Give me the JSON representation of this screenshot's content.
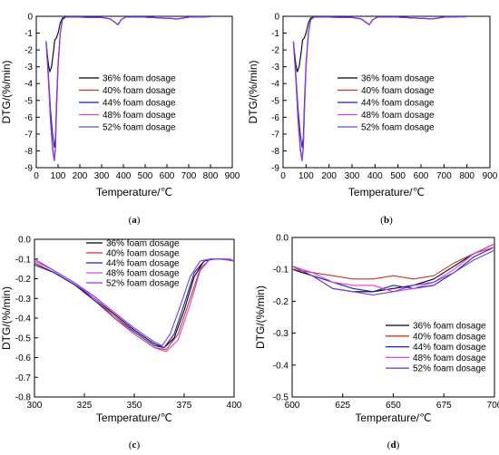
{
  "chart_data": [
    {
      "id": "a",
      "type": "line",
      "panel_label": "a",
      "xlabel": "Temperature/℃",
      "ylabel": "DTG/(%/min)",
      "xlim": [
        0,
        900
      ],
      "ylim": [
        -9,
        0
      ],
      "xticks": [
        0,
        100,
        200,
        300,
        400,
        500,
        600,
        700,
        800,
        900
      ],
      "yticks": [
        -9,
        -8,
        -7,
        -6,
        -5,
        -4,
        -3,
        -2,
        -1,
        0
      ],
      "grid": false,
      "legend_position": "center-right",
      "series": [
        {
          "name": "36% foam dosage",
          "color": "#000000",
          "x": [
            45,
            55,
            62,
            70,
            78,
            85,
            92,
            100,
            110,
            120,
            135,
            150,
            200,
            300,
            340,
            360,
            375,
            390,
            410,
            500,
            600,
            650,
            700,
            800
          ],
          "y": [
            -1.5,
            -2.8,
            -3.3,
            -3.0,
            -2.2,
            -1.4,
            -1.3,
            -1.0,
            -0.4,
            -0.1,
            -0.05,
            -0.05,
            -0.05,
            -0.07,
            -0.15,
            -0.35,
            -0.5,
            -0.2,
            -0.05,
            -0.05,
            -0.12,
            -0.15,
            -0.05,
            -0.02
          ]
        },
        {
          "name": "40% foam dosage",
          "color": "#c0392b",
          "x": [
            45,
            55,
            65,
            75,
            83,
            88,
            93,
            100,
            110,
            120,
            135,
            150,
            200,
            300,
            340,
            360,
            375,
            390,
            410,
            500,
            600,
            650,
            700,
            800
          ],
          "y": [
            -1.5,
            -3.5,
            -6.0,
            -7.8,
            -8.5,
            -7.8,
            -5.5,
            -3.0,
            -1.0,
            -0.2,
            -0.05,
            -0.05,
            -0.05,
            -0.07,
            -0.15,
            -0.35,
            -0.5,
            -0.2,
            -0.05,
            -0.05,
            -0.12,
            -0.15,
            -0.05,
            -0.02
          ]
        },
        {
          "name": "44% foam dosage",
          "color": "#2020b0",
          "x": [
            45,
            55,
            65,
            75,
            83,
            88,
            93,
            100,
            110,
            120,
            135,
            150,
            200,
            300,
            340,
            360,
            375,
            390,
            410,
            500,
            600,
            650,
            700,
            800
          ],
          "y": [
            -1.5,
            -3.3,
            -5.5,
            -7.0,
            -7.8,
            -7.2,
            -5.0,
            -2.8,
            -1.0,
            -0.2,
            -0.05,
            -0.05,
            -0.05,
            -0.07,
            -0.15,
            -0.35,
            -0.5,
            -0.2,
            -0.05,
            -0.05,
            -0.12,
            -0.15,
            -0.05,
            -0.02
          ]
        },
        {
          "name": "48% foam dosage",
          "color": "#e040e0",
          "x": [
            45,
            55,
            65,
            75,
            83,
            88,
            93,
            100,
            110,
            120,
            135,
            150,
            200,
            300,
            340,
            360,
            375,
            390,
            410,
            500,
            600,
            650,
            700,
            800
          ],
          "y": [
            -1.5,
            -3.5,
            -6.2,
            -8.0,
            -8.6,
            -7.9,
            -5.6,
            -3.0,
            -1.0,
            -0.2,
            -0.05,
            -0.05,
            -0.05,
            -0.07,
            -0.15,
            -0.35,
            -0.5,
            -0.2,
            -0.05,
            -0.05,
            -0.12,
            -0.15,
            -0.05,
            -0.02
          ]
        },
        {
          "name": "52% foam dosage",
          "color": "#7a3cf0",
          "x": [
            45,
            55,
            65,
            75,
            83,
            88,
            93,
            100,
            110,
            120,
            135,
            150,
            200,
            300,
            340,
            360,
            375,
            390,
            410,
            500,
            600,
            650,
            700,
            800
          ],
          "y": [
            -1.5,
            -3.6,
            -6.1,
            -7.9,
            -8.6,
            -7.8,
            -5.5,
            -3.0,
            -1.0,
            -0.2,
            -0.05,
            -0.05,
            -0.05,
            -0.07,
            -0.15,
            -0.35,
            -0.5,
            -0.2,
            -0.05,
            -0.05,
            -0.12,
            -0.15,
            -0.05,
            -0.02
          ]
        }
      ]
    },
    {
      "id": "b",
      "type": "line",
      "panel_label": "b",
      "xlabel": "Temperature/℃",
      "ylabel": "DTG/(%/min)",
      "xlim": [
        0,
        900
      ],
      "ylim": [
        -9,
        0
      ],
      "xticks": [
        0,
        100,
        200,
        300,
        400,
        500,
        600,
        700,
        800,
        900
      ],
      "yticks": [
        -9,
        -8,
        -7,
        -6,
        -5,
        -4,
        -3,
        -2,
        -1,
        0
      ],
      "grid": false,
      "legend_position": "center-right",
      "series": [
        {
          "name": "36% foam dosage",
          "color": "#000000",
          "x": [
            45,
            55,
            62,
            70,
            78,
            85,
            92,
            100,
            110,
            120,
            135,
            150,
            200,
            300,
            340,
            360,
            375,
            390,
            410,
            500,
            600,
            650,
            700,
            800
          ],
          "y": [
            -1.5,
            -2.8,
            -3.3,
            -3.0,
            -2.2,
            -1.4,
            -1.3,
            -1.0,
            -0.4,
            -0.1,
            -0.05,
            -0.05,
            -0.05,
            -0.07,
            -0.15,
            -0.35,
            -0.5,
            -0.2,
            -0.05,
            -0.05,
            -0.12,
            -0.15,
            -0.05,
            -0.02
          ]
        },
        {
          "name": "40% foam dosage",
          "color": "#c0392b",
          "x": [
            45,
            55,
            65,
            75,
            83,
            88,
            93,
            100,
            110,
            120,
            135,
            150,
            200,
            300,
            340,
            360,
            375,
            390,
            410,
            500,
            600,
            650,
            700,
            800
          ],
          "y": [
            -1.5,
            -3.5,
            -6.0,
            -7.8,
            -8.5,
            -7.8,
            -5.5,
            -3.0,
            -1.0,
            -0.2,
            -0.05,
            -0.05,
            -0.05,
            -0.07,
            -0.15,
            -0.35,
            -0.5,
            -0.2,
            -0.05,
            -0.05,
            -0.12,
            -0.15,
            -0.05,
            -0.02
          ]
        },
        {
          "name": "44% foam dosage",
          "color": "#2020b0",
          "x": [
            45,
            55,
            65,
            75,
            83,
            88,
            93,
            100,
            110,
            120,
            135,
            150,
            200,
            300,
            340,
            360,
            375,
            390,
            410,
            500,
            600,
            650,
            700,
            800
          ],
          "y": [
            -1.5,
            -3.3,
            -5.5,
            -7.0,
            -7.8,
            -7.2,
            -5.0,
            -2.8,
            -1.0,
            -0.2,
            -0.05,
            -0.05,
            -0.05,
            -0.07,
            -0.15,
            -0.35,
            -0.5,
            -0.2,
            -0.05,
            -0.05,
            -0.12,
            -0.15,
            -0.05,
            -0.02
          ]
        },
        {
          "name": "48% foam dosage",
          "color": "#e040e0",
          "x": [
            45,
            55,
            65,
            75,
            83,
            88,
            93,
            100,
            110,
            120,
            135,
            150,
            200,
            300,
            340,
            360,
            375,
            390,
            410,
            500,
            600,
            650,
            700,
            800
          ],
          "y": [
            -1.5,
            -3.5,
            -6.2,
            -8.0,
            -8.6,
            -7.9,
            -5.6,
            -3.0,
            -1.0,
            -0.2,
            -0.05,
            -0.05,
            -0.05,
            -0.07,
            -0.15,
            -0.35,
            -0.5,
            -0.2,
            -0.05,
            -0.05,
            -0.12,
            -0.15,
            -0.05,
            -0.02
          ]
        },
        {
          "name": "52% foam dosage",
          "color": "#7a3cf0",
          "x": [
            45,
            55,
            65,
            75,
            83,
            88,
            93,
            100,
            110,
            120,
            135,
            150,
            200,
            300,
            340,
            360,
            375,
            390,
            410,
            500,
            600,
            650,
            700,
            800
          ],
          "y": [
            -1.5,
            -3.6,
            -6.1,
            -7.9,
            -8.6,
            -7.8,
            -5.5,
            -3.0,
            -1.0,
            -0.2,
            -0.05,
            -0.05,
            -0.05,
            -0.07,
            -0.15,
            -0.35,
            -0.5,
            -0.2,
            -0.05,
            -0.05,
            -0.12,
            -0.15,
            -0.05,
            -0.02
          ]
        }
      ]
    },
    {
      "id": "c",
      "type": "line",
      "panel_label": "c",
      "xlabel": "Temperature/℃",
      "ylabel": "DTG/(%/min)",
      "xlim": [
        300,
        400
      ],
      "ylim": [
        -0.8,
        0.0
      ],
      "xticks": [
        300,
        325,
        350,
        375,
        400
      ],
      "xtick_labels": [
        "300",
        "325",
        "350",
        "375",
        "400"
      ],
      "yticks": [
        -0.8,
        -0.7,
        -0.6,
        -0.5,
        -0.4,
        -0.3,
        -0.2,
        -0.1,
        0.0
      ],
      "ytick_labels": [
        "-0.8",
        "-0.7",
        "-0.6",
        "-0.5",
        "-0.4",
        "-0.3",
        "-0.2",
        "-0.1",
        "0.0"
      ],
      "grid": false,
      "legend_position": "top-center",
      "series": [
        {
          "name": "36% foam dosage",
          "color": "#000000",
          "x": [
            300,
            310,
            320,
            330,
            340,
            350,
            360,
            365,
            370,
            375,
            380,
            385,
            390,
            395,
            400
          ],
          "y": [
            -0.12,
            -0.17,
            -0.23,
            -0.3,
            -0.38,
            -0.46,
            -0.53,
            -0.55,
            -0.5,
            -0.36,
            -0.19,
            -0.11,
            -0.1,
            -0.1,
            -0.11
          ]
        },
        {
          "name": "40% foam dosage",
          "color": "#c0392b",
          "x": [
            300,
            310,
            320,
            330,
            340,
            350,
            360,
            366,
            372,
            378,
            383,
            388,
            393,
            398,
            400
          ],
          "y": [
            -0.12,
            -0.17,
            -0.23,
            -0.31,
            -0.4,
            -0.48,
            -0.55,
            -0.56,
            -0.48,
            -0.3,
            -0.15,
            -0.1,
            -0.1,
            -0.1,
            -0.11
          ]
        },
        {
          "name": "44% foam dosage",
          "color": "#2020b0",
          "x": [
            300,
            310,
            320,
            330,
            340,
            350,
            360,
            365,
            370,
            375,
            380,
            385,
            390,
            395,
            400
          ],
          "y": [
            -0.13,
            -0.17,
            -0.23,
            -0.31,
            -0.39,
            -0.47,
            -0.54,
            -0.55,
            -0.48,
            -0.33,
            -0.17,
            -0.11,
            -0.1,
            -0.1,
            -0.11
          ]
        },
        {
          "name": "48% foam dosage",
          "color": "#e040e0",
          "x": [
            300,
            310,
            320,
            330,
            340,
            350,
            360,
            366,
            372,
            378,
            383,
            388,
            393,
            398,
            400
          ],
          "y": [
            -0.11,
            -0.16,
            -0.22,
            -0.3,
            -0.39,
            -0.48,
            -0.55,
            -0.57,
            -0.51,
            -0.33,
            -0.16,
            -0.1,
            -0.1,
            -0.1,
            -0.11
          ]
        },
        {
          "name": "52% foam dosage",
          "color": "#7a3cf0",
          "x": [
            300,
            310,
            320,
            330,
            340,
            350,
            360,
            364,
            368,
            373,
            378,
            383,
            388,
            393,
            400
          ],
          "y": [
            -0.1,
            -0.16,
            -0.22,
            -0.29,
            -0.37,
            -0.45,
            -0.52,
            -0.54,
            -0.48,
            -0.34,
            -0.19,
            -0.11,
            -0.1,
            -0.1,
            -0.11
          ]
        }
      ]
    },
    {
      "id": "d",
      "type": "line",
      "panel_label": "d",
      "xlabel": "Temperature/℃",
      "ylabel": "DTG/(%/min)",
      "xlim": [
        600,
        700
      ],
      "ylim": [
        -0.5,
        0.0
      ],
      "xticks": [
        600,
        625,
        650,
        675,
        700
      ],
      "xtick_labels": [
        "600",
        "625",
        "650",
        "675",
        "700"
      ],
      "yticks": [
        -0.5,
        -0.4,
        -0.3,
        -0.2,
        -0.1,
        0.0
      ],
      "ytick_labels": [
        "-0.5",
        "-0.4",
        "-0.3",
        "-0.2",
        "-0.1",
        "0.0"
      ],
      "grid": false,
      "legend_position": "bottom-right",
      "series": [
        {
          "name": "36% foam dosage",
          "color": "#000000",
          "x": [
            600,
            610,
            620,
            630,
            640,
            650,
            660,
            670,
            680,
            690,
            700
          ],
          "y": [
            -0.1,
            -0.12,
            -0.16,
            -0.17,
            -0.17,
            -0.16,
            -0.15,
            -0.13,
            -0.09,
            -0.05,
            -0.03
          ]
        },
        {
          "name": "40% foam dosage",
          "color": "#c0392b",
          "x": [
            600,
            610,
            620,
            630,
            640,
            650,
            660,
            670,
            680,
            690,
            700
          ],
          "y": [
            -0.1,
            -0.11,
            -0.12,
            -0.13,
            -0.13,
            -0.12,
            -0.13,
            -0.12,
            -0.08,
            -0.05,
            -0.02
          ]
        },
        {
          "name": "44% foam dosage",
          "color": "#2020b0",
          "x": [
            600,
            610,
            620,
            630,
            640,
            650,
            660,
            670,
            680,
            690,
            700
          ],
          "y": [
            -0.09,
            -0.12,
            -0.14,
            -0.16,
            -0.17,
            -0.15,
            -0.16,
            -0.15,
            -0.11,
            -0.06,
            -0.03
          ]
        },
        {
          "name": "48% foam dosage",
          "color": "#e040e0",
          "x": [
            600,
            610,
            620,
            630,
            640,
            650,
            660,
            670,
            680,
            690,
            700
          ],
          "y": [
            -0.09,
            -0.11,
            -0.14,
            -0.15,
            -0.15,
            -0.17,
            -0.16,
            -0.14,
            -0.1,
            -0.05,
            -0.03
          ]
        },
        {
          "name": "52% foam dosage",
          "color": "#7a3cf0",
          "x": [
            600,
            610,
            620,
            630,
            640,
            650,
            660,
            670,
            680,
            690,
            700
          ],
          "y": [
            -0.09,
            -0.12,
            -0.16,
            -0.17,
            -0.18,
            -0.17,
            -0.15,
            -0.14,
            -0.11,
            -0.07,
            -0.04
          ]
        }
      ]
    }
  ]
}
